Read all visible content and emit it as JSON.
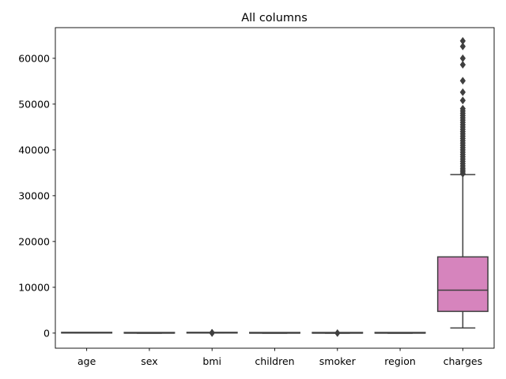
{
  "chart_data": {
    "type": "box",
    "title": "All columns",
    "xlabel": "",
    "ylabel": "",
    "ylim": [
      -3300,
      66700
    ],
    "yticks": [
      0,
      10000,
      20000,
      30000,
      40000,
      50000,
      60000
    ],
    "ytick_labels": [
      "0",
      "10000",
      "20000",
      "30000",
      "40000",
      "50000",
      "60000"
    ],
    "grid": false,
    "categories": [
      "age",
      "sex",
      "bmi",
      "children",
      "smoker",
      "region",
      "charges"
    ],
    "boxes": [
      {
        "name": "age",
        "color": "#3274a1",
        "whislo": 18,
        "q1": 27,
        "med": 39,
        "q3": 51,
        "whishi": 64,
        "fliers": []
      },
      {
        "name": "sex",
        "color": "#e1812c",
        "whislo": 0,
        "q1": 0,
        "med": 1,
        "q3": 1,
        "whishi": 1,
        "fliers": []
      },
      {
        "name": "bmi",
        "color": "#3a923a",
        "whislo": 16,
        "q1": 26,
        "med": 30,
        "q3": 35,
        "whishi": 47,
        "fliers": [
          48,
          49,
          50,
          50.4,
          52.6,
          53.1
        ]
      },
      {
        "name": "children",
        "color": "#c03d3e",
        "whislo": 0,
        "q1": 0,
        "med": 1,
        "q3": 2,
        "whishi": 5,
        "fliers": []
      },
      {
        "name": "smoker",
        "color": "#9372b2",
        "whislo": 0,
        "q1": 0,
        "med": 0,
        "q3": 0,
        "whishi": 0,
        "fliers": [
          1
        ]
      },
      {
        "name": "region",
        "color": "#845b53",
        "whislo": 0,
        "q1": 1,
        "med": 2,
        "q3": 2,
        "whishi": 3,
        "fliers": []
      },
      {
        "name": "charges",
        "color": "#d684bd",
        "whislo": 1122,
        "q1": 4740,
        "med": 9382,
        "q3": 16640,
        "whishi": 34617,
        "fliers": [
          34800,
          35200,
          35600,
          36000,
          36500,
          37000,
          37500,
          38000,
          38500,
          39000,
          39500,
          40000,
          40500,
          41000,
          41500,
          42000,
          42500,
          43000,
          43500,
          44000,
          44500,
          45000,
          45500,
          46000,
          46500,
          47000,
          47500,
          48000,
          48500,
          49000,
          50800,
          52600,
          55100,
          58600,
          60000,
          62600,
          63800
        ]
      }
    ]
  }
}
